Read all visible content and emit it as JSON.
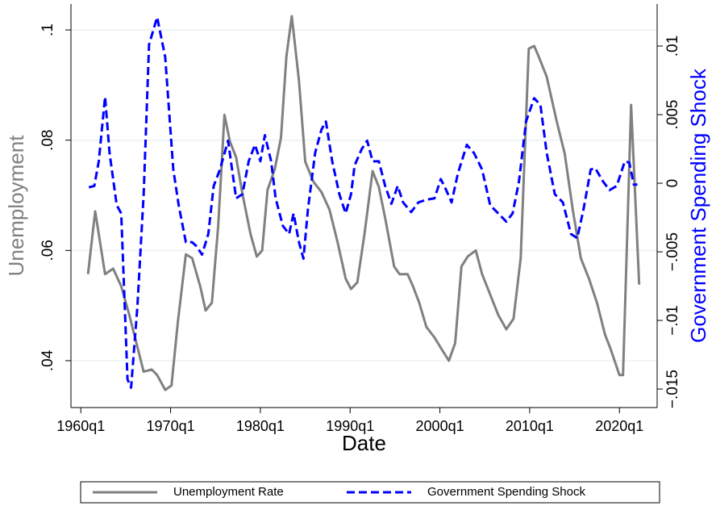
{
  "chart_data": {
    "type": "line",
    "x_label": "Date",
    "y_label": "Unemployment",
    "y2_label": "Government Spending Shock",
    "xlim": [
      1958.9,
      2024.2
    ],
    "xticks": [
      {
        "value": 1960,
        "label": "1960q1"
      },
      {
        "value": 1970,
        "label": "1970q1"
      },
      {
        "value": 1980,
        "label": "1980q1"
      },
      {
        "value": 1990,
        "label": "1990q1"
      },
      {
        "value": 2000,
        "label": "2000q1"
      },
      {
        "value": 2010,
        "label": "2010q1"
      },
      {
        "value": 2020,
        "label": "2020q1"
      }
    ],
    "ylim": [
      0.0315,
      0.1047
    ],
    "yticks": [
      {
        "value": 0.04,
        "label": ".04"
      },
      {
        "value": 0.06,
        "label": ".06"
      },
      {
        "value": 0.08,
        "label": ".08"
      },
      {
        "value": 0.1,
        "label": ".1"
      }
    ],
    "y2lim": [
      -0.01635,
      0.01306
    ],
    "y2ticks": [
      {
        "value": -0.015,
        "label": "−.015"
      },
      {
        "value": -0.01,
        "label": "−.01"
      },
      {
        "value": -0.005,
        "label": "−.005"
      },
      0,
      {
        "value": 0.005,
        "label": ".005"
      },
      {
        "value": 0.01,
        "label": ".01"
      }
    ],
    "grid": true,
    "legend": "bottom",
    "series": [
      {
        "name": "Unemployment Rate",
        "color": "#808080",
        "dash": false,
        "x": [
          1960.8,
          1961.6,
          1962.7,
          1963.6,
          1964.5,
          1965.4,
          1966.3,
          1967.0,
          1967.9,
          1968.5,
          1969.4,
          1970.1,
          1970.8,
          1971.7,
          1972.4,
          1973.3,
          1973.9,
          1974.6,
          1975.3,
          1976.0,
          1976.6,
          1977.3,
          1978.0,
          1978.9,
          1979.6,
          1980.2,
          1980.8,
          1981.6,
          1982.3,
          1982.9,
          1983.5,
          1984.3,
          1985.0,
          1985.9,
          1986.8,
          1987.7,
          1988.6,
          1989.5,
          1990.1,
          1990.8,
          1991.6,
          1992.5,
          1993.2,
          1993.9,
          1994.9,
          1995.5,
          1996.4,
          1997.0,
          1997.7,
          1998.5,
          1999.4,
          2000.3,
          2001.0,
          2001.7,
          2002.4,
          2003.1,
          2004.0,
          2004.7,
          2005.6,
          2006.5,
          2007.4,
          2008.2,
          2009.0,
          2009.9,
          2010.5,
          2011.0,
          2011.9,
          2013.0,
          2013.9,
          2014.8,
          2015.7,
          2016.6,
          2017.5,
          2018.4,
          2019.0,
          2020.0,
          2020.4,
          2021.3,
          2022.2
        ],
        "values": [
          0.0557,
          0.0671,
          0.0557,
          0.0567,
          0.0535,
          0.0483,
          0.0425,
          0.038,
          0.0384,
          0.0374,
          0.0347,
          0.0355,
          0.0469,
          0.0593,
          0.0586,
          0.0535,
          0.0491,
          0.0505,
          0.0644,
          0.0846,
          0.0798,
          0.0769,
          0.0703,
          0.063,
          0.0589,
          0.06,
          0.071,
          0.0747,
          0.0805,
          0.0952,
          0.1025,
          0.0908,
          0.0761,
          0.0725,
          0.0706,
          0.0674,
          0.0615,
          0.0549,
          0.053,
          0.0542,
          0.063,
          0.0744,
          0.0715,
          0.0659,
          0.0571,
          0.0557,
          0.0557,
          0.0535,
          0.0505,
          0.0461,
          0.0442,
          0.0418,
          0.04,
          0.0432,
          0.0571,
          0.0589,
          0.06,
          0.0557,
          0.052,
          0.0483,
          0.0457,
          0.0476,
          0.0586,
          0.0966,
          0.0971,
          0.0952,
          0.0915,
          0.0835,
          0.0776,
          0.0674,
          0.0586,
          0.0549,
          0.0505,
          0.0447,
          0.0422,
          0.0374,
          0.0374,
          0.0864,
          0.0538
        ]
      },
      {
        "name": "Government Spending Shock",
        "color": "#0000ff",
        "dash": true,
        "axis": "y2",
        "x": [
          1960.9,
          1961.5,
          1962.0,
          1962.7,
          1963.2,
          1964.0,
          1964.5,
          1965.2,
          1965.6,
          1966.3,
          1967.0,
          1967.6,
          1968.5,
          1969.4,
          1970.3,
          1970.9,
          1971.7,
          1972.4,
          1972.9,
          1973.5,
          1974.2,
          1974.8,
          1975.5,
          1976.4,
          1977.3,
          1978.0,
          1978.7,
          1979.4,
          1980.0,
          1980.5,
          1981.2,
          1981.7,
          1982.5,
          1983.2,
          1983.7,
          1984.3,
          1984.8,
          1985.3,
          1986.1,
          1986.8,
          1987.3,
          1988.0,
          1988.8,
          1989.5,
          1990.1,
          1990.5,
          1991.3,
          1991.9,
          1992.5,
          1993.2,
          1993.9,
          1994.6,
          1995.3,
          1995.9,
          1996.8,
          1997.6,
          1998.5,
          1999.4,
          2000.1,
          2000.7,
          2001.3,
          2002.0,
          2003.0,
          2003.8,
          2004.7,
          2005.6,
          2006.5,
          2007.4,
          2008.1,
          2008.8,
          2009.6,
          2010.5,
          2011.2,
          2011.9,
          2012.8,
          2013.7,
          2014.6,
          2015.3,
          2016.0,
          2016.8,
          2017.3,
          2018.2,
          2018.9,
          2019.7,
          2020.6,
          2021.1,
          2021.6,
          2022.0
        ],
        "values": [
          -0.0003,
          -0.0002,
          0.0016,
          0.0063,
          0.0022,
          -0.0016,
          -0.0022,
          -0.0143,
          -0.0149,
          -0.009,
          -0.0008,
          0.0101,
          0.0121,
          0.0092,
          0.001,
          -0.0016,
          -0.0043,
          -0.0043,
          -0.0046,
          -0.0052,
          -0.0037,
          -0.0002,
          0.001,
          0.0031,
          -0.0011,
          -0.0008,
          0.0016,
          0.0028,
          0.0016,
          0.0035,
          0.0016,
          -0.0011,
          -0.0031,
          -0.0037,
          -0.0022,
          -0.0043,
          -0.0055,
          -0.0019,
          0.0022,
          0.0039,
          0.0045,
          0.0016,
          -0.0008,
          -0.0022,
          -0.0008,
          0.0013,
          0.0025,
          0.0031,
          0.0016,
          0.0016,
          -0.0002,
          -0.0015,
          -0.0002,
          -0.0014,
          -0.0021,
          -0.0014,
          -0.0012,
          -0.0011,
          0.0003,
          -0.0005,
          -0.0014,
          0.0007,
          0.0028,
          0.0022,
          0.001,
          -0.0016,
          -0.0022,
          -0.0028,
          -0.0022,
          0.0001,
          0.0045,
          0.0062,
          0.0057,
          0.0022,
          -0.0008,
          -0.0014,
          -0.0037,
          -0.004,
          -0.0019,
          0.001,
          0.0011,
          0.0001,
          -0.0005,
          -0.0002,
          0.0016,
          0.0015,
          -0.0001,
          -0.0001
        ]
      }
    ]
  }
}
